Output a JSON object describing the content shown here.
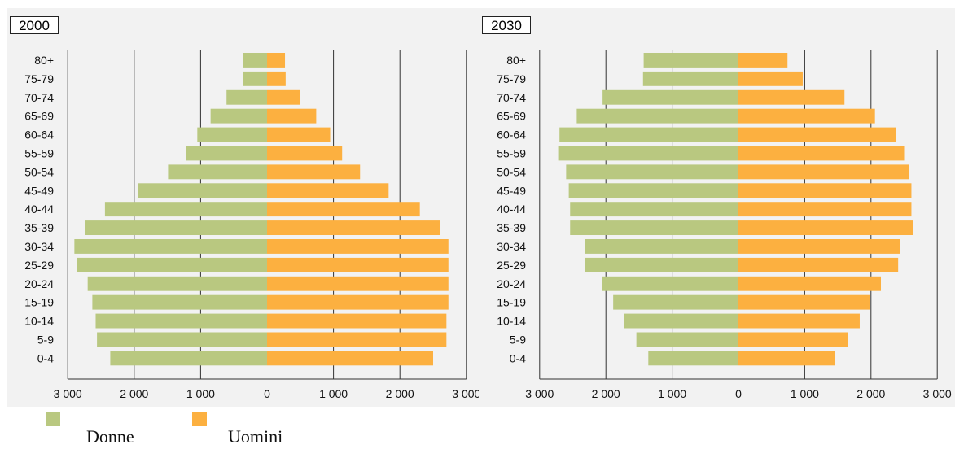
{
  "colors": {
    "female": "#b9c880",
    "male": "#fcb040"
  },
  "legend": [
    {
      "label": "Donne",
      "color": "#b9c880"
    },
    {
      "label": "Uomini",
      "color": "#fcb040"
    }
  ],
  "chart_data": [
    {
      "type": "bar",
      "title": "2000",
      "orientation": "horizontal-pyramid",
      "categories": [
        "0-4",
        "5-9",
        "10-14",
        "15-19",
        "20-24",
        "25-29",
        "30-34",
        "35-39",
        "40-44",
        "45-49",
        "50-54",
        "55-59",
        "60-64",
        "65-69",
        "70-74",
        "75-79",
        "80+"
      ],
      "series": [
        {
          "name": "Donne",
          "side": "left",
          "values": [
            2360,
            2560,
            2580,
            2630,
            2700,
            2860,
            2900,
            2740,
            2440,
            1940,
            1490,
            1220,
            1050,
            850,
            610,
            360,
            360
          ]
        },
        {
          "name": "Uomini",
          "side": "right",
          "values": [
            2500,
            2700,
            2700,
            2730,
            2730,
            2730,
            2730,
            2600,
            2300,
            1830,
            1400,
            1130,
            950,
            740,
            500,
            280,
            270
          ]
        }
      ],
      "xlim": [
        -3000,
        3000
      ],
      "x_ticks": [
        "3 000",
        "2 000",
        "1 000",
        "0",
        "1 000",
        "2 000",
        "3 000"
      ],
      "grid": "vertical"
    },
    {
      "type": "bar",
      "title": "2030",
      "orientation": "horizontal-pyramid",
      "categories": [
        "0-4",
        "5-9",
        "10-14",
        "15-19",
        "20-24",
        "25-29",
        "30-34",
        "35-39",
        "40-44",
        "45-49",
        "50-54",
        "55-59",
        "60-64",
        "65-69",
        "70-74",
        "75-79",
        "80+"
      ],
      "series": [
        {
          "name": "Donne",
          "side": "left",
          "values": [
            1360,
            1540,
            1720,
            1890,
            2060,
            2320,
            2320,
            2540,
            2540,
            2560,
            2600,
            2720,
            2700,
            2440,
            2050,
            1440,
            1430
          ]
        },
        {
          "name": "Uomini",
          "side": "right",
          "values": [
            1450,
            1650,
            1830,
            1990,
            2150,
            2410,
            2440,
            2630,
            2610,
            2610,
            2580,
            2500,
            2380,
            2060,
            1600,
            970,
            740
          ]
        }
      ],
      "xlim": [
        -3000,
        3000
      ],
      "x_ticks": [
        "3 000",
        "2 000",
        "1 000",
        "0",
        "1 000",
        "2 000",
        "3 000"
      ],
      "grid": "vertical"
    }
  ]
}
